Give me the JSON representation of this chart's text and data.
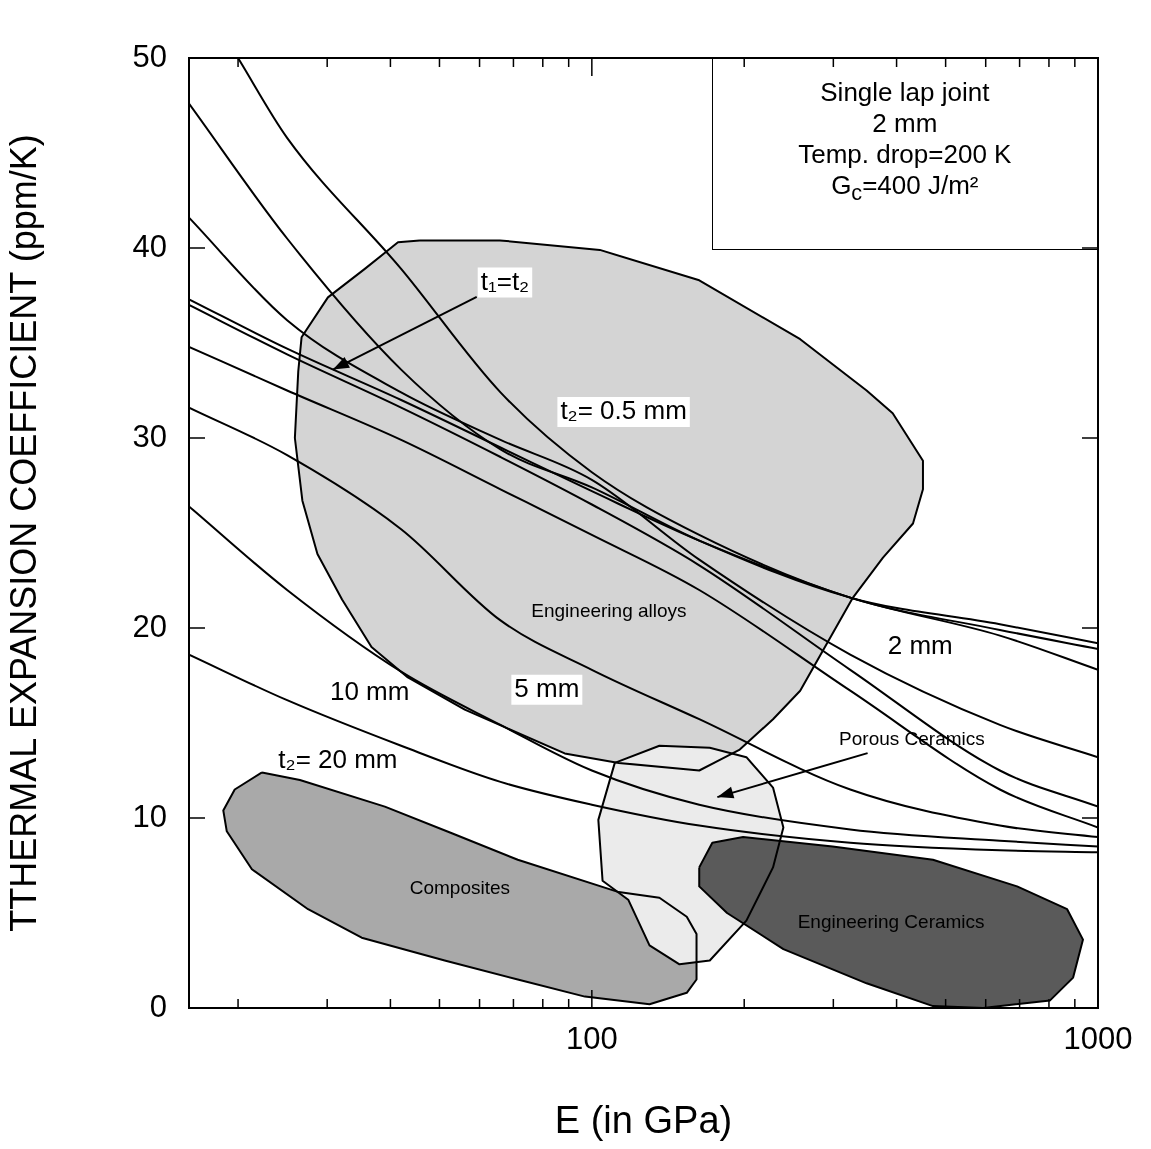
{
  "chart_data": {
    "type": "line",
    "log": "x",
    "xlabel": "E (in GPa)",
    "ylabel": "TTHERMAL EXPANSION COEFFICIENT (ppm/K)",
    "xlim": [
      16,
      1000
    ],
    "ylim": [
      0,
      50
    ],
    "xticks": [
      {
        "value": 20,
        "label": null
      },
      {
        "value": 30,
        "label": null
      },
      {
        "value": 40,
        "label": null
      },
      {
        "value": 50,
        "label": null
      },
      {
        "value": 60,
        "label": null
      },
      {
        "value": 70,
        "label": null
      },
      {
        "value": 80,
        "label": null
      },
      {
        "value": 90,
        "label": null
      },
      100,
      {
        "value": 200,
        "label": null
      },
      {
        "value": 300,
        "label": null
      },
      {
        "value": 400,
        "label": null
      },
      {
        "value": 500,
        "label": null
      },
      {
        "value": 600,
        "label": null
      },
      {
        "value": 700,
        "label": null
      },
      {
        "value": 800,
        "label": null
      },
      {
        "value": 900,
        "label": null
      },
      1000
    ],
    "yticks": [
      0,
      10,
      20,
      30,
      40,
      50
    ],
    "annotations": [
      "Single lap joint",
      "2 mm",
      "Temp. drop=200 K",
      "G$_{c}$=400 J/m²",
      {
        "text": "t₁=t₂",
        "x": 30.8,
        "y": 33.6
      },
      "Porous Ceramics",
      {
        "text": "t₂= 0.5 mm",
        "x": 75,
        "y": 31.1
      },
      {
        "text": "2 mm",
        "x": 324,
        "y": 18.6
      },
      {
        "text": "5 mm",
        "x": 100,
        "y": 17.8
      },
      {
        "text": "10 mm",
        "x": 45.7,
        "y": 17.2
      },
      {
        "text": "t₂= 20 mm",
        "x": 31.5,
        "y": 15.1
      }
    ],
    "series": [
      {
        "type": "area",
        "name": "Engineering alloys",
        "color": "#d4d4d4",
        "x": [
          45.7,
          65.8,
          103.7,
          163,
          258,
          349,
          393,
          451,
          451,
          431,
          376,
          328,
          258,
          228,
          196,
          163,
          113,
          88.4,
          56.1,
          43.3,
          36.7,
          32.1,
          28.7,
          26.8,
          25.9,
          26.3,
          26.7,
          30.1,
          35.6,
          41.4
        ],
        "values": [
          40.4,
          40.4,
          39.9,
          38.3,
          35.2,
          32.5,
          31.3,
          28.8,
          27.3,
          25.5,
          23.7,
          21.6,
          16.7,
          15.2,
          13.6,
          12.5,
          12.9,
          13.4,
          15.7,
          17.4,
          19.0,
          21.5,
          23.9,
          26.7,
          30.0,
          33.5,
          35.3,
          37.4,
          38.9,
          40.3
        ]
      },
      {
        "type": "area",
        "name": "Composites",
        "color": "#a9a9a9",
        "x": [
          22.3,
          19.7,
          18.7,
          19.0,
          21.3,
          27.5,
          35.1,
          51.2,
          71.4,
          96.9,
          130,
          154,
          161,
          161,
          154,
          136,
          113,
          71.4,
          52.9,
          39.0,
          26.5
        ],
        "values": [
          12.4,
          11.5,
          10.4,
          9.3,
          7.3,
          5.2,
          3.7,
          2.5,
          1.5,
          0.6,
          0.2,
          0.8,
          1.5,
          3.9,
          4.8,
          5.8,
          6.1,
          7.8,
          9.2,
          10.6,
          12.0
        ]
      },
      {
        "type": "area",
        "color": "#ebebeb",
        "x": [
          111,
          136,
          171,
          202,
          228,
          239,
          228,
          202,
          171,
          149,
          130,
          118,
          105,
          103
        ],
        "values": [
          12.9,
          13.8,
          13.7,
          13.2,
          11.6,
          9.5,
          7.4,
          4.6,
          2.5,
          2.3,
          3.3,
          5.7,
          6.7,
          9.9
        ]
      },
      {
        "type": "area",
        "name": "Engineering Ceramics",
        "color": "#5a5a5a",
        "x": [
          163,
          173,
          199,
          299,
          472,
          692,
          869,
          934,
          893,
          804,
          593,
          472,
          349,
          239,
          185,
          163
        ],
        "values": [
          7.4,
          8.7,
          9.0,
          8.5,
          7.8,
          6.4,
          5.2,
          3.6,
          1.6,
          0.4,
          0,
          0.1,
          1.3,
          3.1,
          5.0,
          6.4
        ]
      },
      {
        "color": "#000000",
        "x": [
          20,
          25,
          42,
          66,
          100,
          163,
          324,
          640,
          1000
        ],
        "values": [
          50,
          45.8,
          38.9,
          32.4,
          28.2,
          24.9,
          21.6,
          19.9,
          18.9
        ]
      },
      {
        "color": "#000000",
        "x": [
          16,
          25,
          42,
          66,
          100,
          163,
          324,
          640,
          1000
        ],
        "values": [
          47.6,
          40.5,
          33.6,
          29.4,
          27.4,
          24.6,
          21.6,
          20.2,
          19.2
        ]
      },
      {
        "color": "#000000",
        "x": [
          16,
          25,
          42,
          66,
          100,
          163,
          324,
          640,
          1000
        ],
        "values": [
          41.6,
          36.2,
          32.4,
          29.9,
          27.8,
          23.6,
          18.6,
          14.9,
          13.2
        ]
      },
      {
        "color": "#000000",
        "x": [
          16,
          25,
          42,
          66,
          100,
          163,
          324,
          640,
          1000
        ],
        "values": [
          37.3,
          34.7,
          32.0,
          29.5,
          27.2,
          24.6,
          21.6,
          19.6,
          17.8
        ]
      },
      {
        "color": "#000000",
        "x": [
          16,
          25,
          42,
          66,
          100,
          163,
          324,
          640,
          1000
        ],
        "values": [
          37.0,
          34.4,
          31.6,
          29.0,
          26.5,
          23.3,
          17.8,
          12.5,
          10.6
        ]
      },
      {
        "color": "#000000",
        "x": [
          16,
          25,
          42,
          66,
          100,
          163,
          324,
          640,
          1000
        ],
        "values": [
          34.8,
          32.5,
          29.9,
          27.3,
          24.9,
          22.0,
          16.7,
          11.5,
          9.5
        ]
      },
      {
        "color": "#000000",
        "x": [
          16,
          25,
          42,
          66,
          100,
          163,
          324,
          640,
          1000
        ],
        "values": [
          31.6,
          29.1,
          25.2,
          20.4,
          17.8,
          15.2,
          11.5,
          9.6,
          9.0
        ]
      },
      {
        "color": "#000000",
        "x": [
          16,
          25,
          42,
          66,
          100,
          163,
          324,
          640,
          1000
        ],
        "values": [
          26.4,
          22.0,
          17.7,
          14.9,
          12.5,
          10.7,
          9.4,
          8.8,
          8.5
        ]
      },
      {
        "color": "#000000",
        "x": [
          16,
          25,
          42,
          66,
          100,
          163,
          324,
          640,
          1000
        ],
        "values": [
          18.6,
          16.2,
          13.8,
          11.9,
          10.7,
          9.6,
          8.7,
          8.3,
          8.2
        ]
      }
    ]
  }
}
